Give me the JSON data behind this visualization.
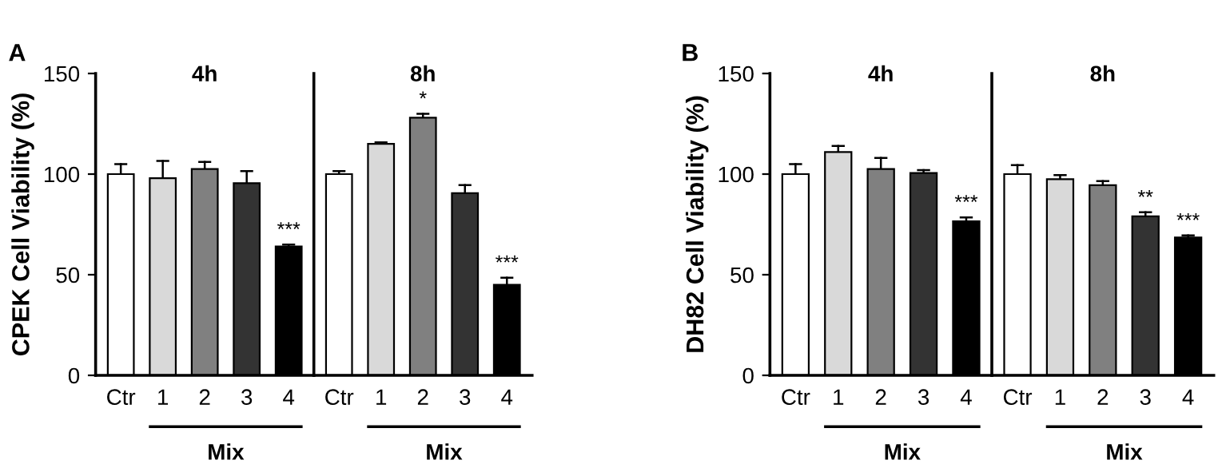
{
  "chart_data": [
    {
      "type": "bar",
      "title": "4h",
      "ylabel": "CPEK Cell Viability (%)",
      "categories": [
        "Ctr",
        "1",
        "2",
        "3",
        "4"
      ],
      "values": [
        100,
        98,
        102.5,
        95.5,
        64
      ],
      "errors": [
        5,
        8.5,
        3.5,
        6,
        1
      ],
      "colors": [
        "#ffffff",
        "#d9d9d9",
        "#808080",
        "#333333",
        "#000000"
      ],
      "ylim": [
        0,
        150
      ],
      "yticks": [
        0,
        50,
        100,
        150
      ],
      "grid": false,
      "annotations": [
        "A",
        "Mix",
        {
          "text": "***",
          "x": "4",
          "y": 65
        }
      ]
    },
    {
      "type": "bar",
      "title": "8h",
      "categories": [
        "Ctr",
        "1",
        "2",
        "3",
        "4"
      ],
      "values": [
        100,
        115,
        128,
        90.5,
        45
      ],
      "errors": [
        1.5,
        0.8,
        2,
        4,
        3.5
      ],
      "colors": [
        "#ffffff",
        "#d9d9d9",
        "#808080",
        "#333333",
        "#000000"
      ],
      "ylim": [
        0,
        150
      ],
      "yticks": [
        0,
        50,
        100,
        150
      ],
      "tick_labels": "x",
      "grid": false,
      "annotations": [
        "Mix",
        {
          "text": "*",
          "x": "2",
          "y": 130
        },
        {
          "text": "***",
          "x": "4",
          "y": 48.5
        }
      ]
    },
    {
      "type": "bar",
      "title": "4h",
      "ylabel": "DH82 Cell Viability (%)",
      "categories": [
        "Ctr",
        "1",
        "2",
        "3",
        "4"
      ],
      "values": [
        100,
        111,
        102.5,
        100.5,
        76.5
      ],
      "errors": [
        5,
        3,
        5.5,
        1.5,
        2
      ],
      "colors": [
        "#ffffff",
        "#d9d9d9",
        "#808080",
        "#333333",
        "#000000"
      ],
      "ylim": [
        0,
        150
      ],
      "yticks": [
        0,
        50,
        100,
        150
      ],
      "grid": false,
      "annotations": [
        "B",
        "Mix",
        {
          "text": "***",
          "x": "4",
          "y": 78.5
        }
      ]
    },
    {
      "type": "bar",
      "title": "8h",
      "categories": [
        "Ctr",
        "1",
        "2",
        "3",
        "4"
      ],
      "values": [
        100,
        97.5,
        94.5,
        79,
        68.5
      ],
      "errors": [
        4.5,
        2,
        2,
        2,
        1
      ],
      "colors": [
        "#ffffff",
        "#d9d9d9",
        "#808080",
        "#333333",
        "#000000"
      ],
      "ylim": [
        0,
        150
      ],
      "yticks": [
        0,
        50,
        100,
        150
      ],
      "tick_labels": "x",
      "grid": false,
      "annotations": [
        "Mix",
        {
          "text": "**",
          "x": "3",
          "y": 81
        },
        {
          "text": "***",
          "x": "4",
          "y": 69.5
        }
      ]
    }
  ]
}
